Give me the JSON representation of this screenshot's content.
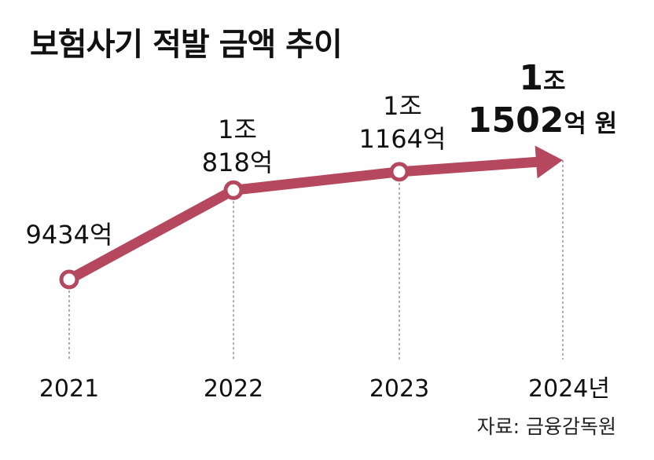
{
  "title": "보험사기 적발 금액 추이",
  "source": "자료: 금융감독원",
  "chart_data": {
    "type": "line",
    "title": "보험사기 적발 금액 추이",
    "unit": "억 원",
    "x": [
      "2021",
      "2022",
      "2023",
      "2024년"
    ],
    "values": [
      9434,
      10818,
      11164,
      11502
    ],
    "data_labels": [
      [
        "9434억"
      ],
      [
        "1조",
        "818억"
      ],
      [
        "1조",
        "1164억"
      ],
      [
        "1조",
        "1502",
        "억 원"
      ]
    ],
    "series_color": "#b5485e",
    "grid": false,
    "legend": "none"
  }
}
